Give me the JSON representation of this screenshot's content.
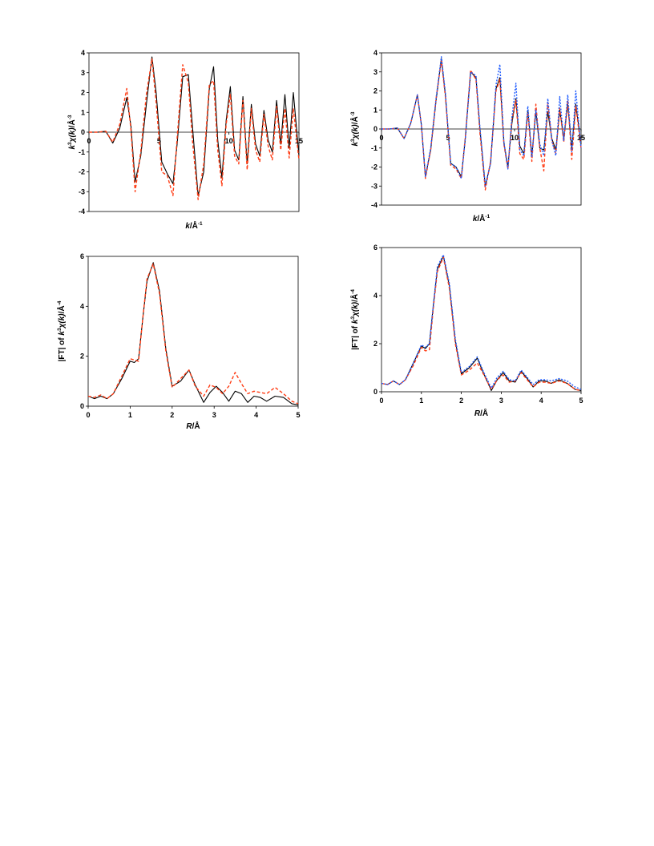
{
  "chart_data": [
    {
      "id": "chi-left",
      "type": "line",
      "xlabel": "k/Å-1",
      "ylabel": "k3χ(k)/Å-3",
      "xlim": [
        0,
        15
      ],
      "ylim": [
        -4,
        4
      ],
      "xticks": [
        "0",
        "5",
        "10",
        "15"
      ],
      "yticks": [
        "-4",
        "-3",
        "-2",
        "-1",
        "0",
        "1",
        "2",
        "3",
        "4"
      ],
      "xtick_position": "on zero line",
      "grid": false,
      "legend": "none",
      "series": [
        {
          "color": "#000000",
          "style": "solid",
          "x": [
            0,
            0.6,
            1.2,
            1.7,
            2.2,
            2.7,
            3.0,
            3.3,
            3.7,
            4.1,
            4.5,
            4.8,
            5.2,
            5.6,
            6.0,
            6.3,
            6.7,
            7.1,
            7.4,
            7.8,
            8.2,
            8.6,
            8.9,
            9.2,
            9.5,
            9.8,
            10.1,
            10.4,
            10.7,
            11.0,
            11.3,
            11.6,
            11.9,
            12.2,
            12.5,
            12.8,
            13.1,
            13.4,
            13.7,
            14.0,
            14.3,
            14.6,
            15.0
          ],
          "y": [
            0,
            0,
            0.05,
            -0.55,
            0.2,
            1.75,
            0.3,
            -2.5,
            -1.2,
            1.4,
            3.8,
            2.0,
            -1.5,
            -2.1,
            -2.6,
            -0.6,
            2.8,
            2.9,
            0.2,
            -3.2,
            -2.0,
            2.2,
            3.3,
            -0.4,
            -2.3,
            0.6,
            2.3,
            -0.9,
            -1.4,
            1.8,
            -1.6,
            1.4,
            -0.6,
            -1.2,
            1.1,
            -0.4,
            -1.0,
            1.6,
            -0.6,
            1.9,
            -0.8,
            2.0,
            -1.2
          ]
        },
        {
          "color": "#ff3c14",
          "style": "dashed",
          "x": [
            0,
            0.6,
            1.2,
            1.7,
            2.2,
            2.7,
            3.0,
            3.3,
            3.7,
            4.1,
            4.5,
            4.8,
            5.2,
            5.6,
            6.0,
            6.3,
            6.7,
            7.1,
            7.4,
            7.8,
            8.2,
            8.6,
            8.9,
            9.2,
            9.5,
            9.8,
            10.1,
            10.4,
            10.7,
            11.0,
            11.3,
            11.6,
            11.9,
            12.2,
            12.5,
            12.8,
            13.1,
            13.4,
            13.7,
            14.0,
            14.3,
            14.6,
            15.0
          ],
          "y": [
            0,
            0,
            0.05,
            -0.5,
            0.4,
            2.2,
            0.1,
            -3.0,
            -1.0,
            1.9,
            3.7,
            1.5,
            -2.0,
            -2.2,
            -3.2,
            -0.3,
            3.4,
            2.5,
            -0.5,
            -3.4,
            -1.6,
            2.4,
            2.6,
            -0.9,
            -2.7,
            0.4,
            1.9,
            -1.2,
            -1.6,
            1.6,
            -1.9,
            1.2,
            -0.9,
            -1.5,
            0.9,
            -0.7,
            -1.4,
            1.3,
            -0.9,
            1.2,
            -1.3,
            1.2,
            -1.4
          ]
        }
      ]
    },
    {
      "id": "chi-right",
      "type": "line",
      "xlabel": "k/Å-1",
      "ylabel": "k3χ(k)/Å-3",
      "xlim": [
        0,
        15
      ],
      "ylim": [
        -4,
        4
      ],
      "xticks": [
        "0",
        "5",
        "10",
        "15"
      ],
      "yticks": [
        "-4",
        "-3",
        "-2",
        "-1",
        "0",
        "1",
        "2",
        "3",
        "4"
      ],
      "xtick_position": "on zero line",
      "grid": false,
      "legend": "none",
      "series": [
        {
          "color": "#000000",
          "style": "solid",
          "x": [
            0,
            0.6,
            1.2,
            1.7,
            2.2,
            2.7,
            3.0,
            3.3,
            3.7,
            4.1,
            4.5,
            4.8,
            5.2,
            5.6,
            6.0,
            6.3,
            6.7,
            7.1,
            7.4,
            7.8,
            8.2,
            8.6,
            8.9,
            9.2,
            9.5,
            9.8,
            10.1,
            10.4,
            10.7,
            11.0,
            11.3,
            11.6,
            11.9,
            12.2,
            12.5,
            12.8,
            13.1,
            13.4,
            13.7,
            14.0,
            14.3,
            14.6,
            15.0
          ],
          "y": [
            0,
            0,
            0.05,
            -0.5,
            0.3,
            1.8,
            0.2,
            -2.5,
            -1.1,
            1.5,
            3.7,
            1.8,
            -1.8,
            -2.0,
            -2.5,
            -0.5,
            3.0,
            2.7,
            0.0,
            -3.0,
            -1.8,
            2.1,
            2.7,
            -0.7,
            -2.0,
            0.3,
            1.6,
            -0.9,
            -1.3,
            1.0,
            -1.4,
            0.9,
            -1.0,
            -1.1,
            0.9,
            -0.5,
            -1.1,
            1.0,
            -0.5,
            1.3,
            -1.0,
            1.3,
            -0.8
          ]
        },
        {
          "color": "#ff3c14",
          "style": "dashed",
          "x": [
            0,
            0.6,
            1.2,
            1.7,
            2.2,
            2.7,
            3.0,
            3.3,
            3.7,
            4.1,
            4.5,
            4.8,
            5.2,
            5.6,
            6.0,
            6.3,
            6.7,
            7.1,
            7.4,
            7.8,
            8.2,
            8.6,
            8.9,
            9.2,
            9.5,
            9.8,
            10.1,
            10.4,
            10.7,
            11.0,
            11.3,
            11.6,
            11.9,
            12.2,
            12.5,
            12.8,
            13.1,
            13.4,
            13.7,
            14.0,
            14.3,
            14.6,
            15.0
          ],
          "y": [
            0,
            0,
            0.05,
            -0.5,
            0.3,
            1.8,
            0.2,
            -2.6,
            -1.1,
            1.6,
            3.6,
            1.7,
            -1.9,
            -2.1,
            -2.6,
            -0.4,
            3.1,
            2.6,
            -0.2,
            -3.2,
            -1.7,
            2.0,
            2.6,
            -0.8,
            -2.1,
            0.5,
            1.5,
            -1.3,
            -1.6,
            0.9,
            -1.7,
            1.3,
            -1.0,
            -2.2,
            1.4,
            -0.6,
            -1.3,
            1.1,
            -0.7,
            1.5,
            -1.6,
            1.2,
            -1.0
          ]
        },
        {
          "color": "#1f5cff",
          "style": "dotted",
          "x": [
            0,
            0.6,
            1.2,
            1.7,
            2.2,
            2.7,
            3.0,
            3.3,
            3.7,
            4.1,
            4.5,
            4.8,
            5.2,
            5.6,
            6.0,
            6.3,
            6.7,
            7.1,
            7.4,
            7.8,
            8.2,
            8.6,
            8.9,
            9.2,
            9.5,
            9.8,
            10.1,
            10.4,
            10.7,
            11.0,
            11.3,
            11.6,
            11.9,
            12.2,
            12.5,
            12.8,
            13.1,
            13.4,
            13.7,
            14.0,
            14.3,
            14.6,
            15.0
          ],
          "y": [
            0,
            0,
            0.05,
            -0.5,
            0.3,
            1.8,
            0.2,
            -2.5,
            -1.0,
            1.6,
            3.8,
            1.9,
            -1.8,
            -2.0,
            -2.6,
            -0.5,
            3.0,
            2.8,
            0.1,
            -3.0,
            -1.8,
            2.3,
            3.4,
            -0.7,
            -2.1,
            0.6,
            2.4,
            -1.1,
            -1.4,
            1.2,
            -1.5,
            1.0,
            -0.8,
            -1.4,
            1.6,
            -0.6,
            -1.4,
            1.7,
            -0.6,
            1.8,
            -1.2,
            2.0,
            -1.0
          ]
        }
      ]
    },
    {
      "id": "ft-left",
      "type": "line",
      "xlabel": "R/Å",
      "ylabel": "|FT| of k3χ(k)/Å-4",
      "xlim": [
        0,
        5
      ],
      "ylim": [
        0,
        6
      ],
      "xticks": [
        "0",
        "1",
        "2",
        "3",
        "4",
        "5"
      ],
      "yticks": [
        "0",
        "2",
        "4",
        "6"
      ],
      "xtick_position": "bottom",
      "grid": false,
      "legend": "none",
      "series": [
        {
          "color": "#000000",
          "style": "solid",
          "x": [
            0,
            0.15,
            0.3,
            0.45,
            0.6,
            0.8,
            1.0,
            1.1,
            1.2,
            1.3,
            1.4,
            1.55,
            1.7,
            1.85,
            2.0,
            2.2,
            2.4,
            2.55,
            2.75,
            2.9,
            3.05,
            3.2,
            3.35,
            3.5,
            3.65,
            3.8,
            3.95,
            4.1,
            4.25,
            4.45,
            4.65,
            4.85,
            5.0
          ],
          "y": [
            0.4,
            0.3,
            0.4,
            0.3,
            0.5,
            1.1,
            1.8,
            1.75,
            1.9,
            3.5,
            5.0,
            5.75,
            4.6,
            2.3,
            0.8,
            1.0,
            1.45,
            0.85,
            0.15,
            0.55,
            0.8,
            0.55,
            0.2,
            0.6,
            0.5,
            0.15,
            0.4,
            0.35,
            0.2,
            0.4,
            0.35,
            0.1,
            0.05
          ]
        },
        {
          "color": "#ff3c14",
          "style": "dashed",
          "x": [
            0,
            0.15,
            0.3,
            0.45,
            0.6,
            0.8,
            1.0,
            1.1,
            1.2,
            1.3,
            1.4,
            1.55,
            1.7,
            1.85,
            2.0,
            2.2,
            2.4,
            2.55,
            2.75,
            2.9,
            3.05,
            3.2,
            3.35,
            3.5,
            3.65,
            3.8,
            3.95,
            4.1,
            4.25,
            4.45,
            4.65,
            4.85,
            5.0
          ],
          "y": [
            0.4,
            0.35,
            0.45,
            0.3,
            0.5,
            1.2,
            1.9,
            1.85,
            1.8,
            3.5,
            5.1,
            5.7,
            4.5,
            2.2,
            0.75,
            1.1,
            1.45,
            0.8,
            0.4,
            0.85,
            0.75,
            0.5,
            0.8,
            1.35,
            0.9,
            0.5,
            0.6,
            0.55,
            0.5,
            0.75,
            0.5,
            0.2,
            0.1
          ]
        }
      ]
    },
    {
      "id": "ft-right",
      "type": "line",
      "xlabel": "R/Å",
      "ylabel": "|FT| of k3χ(k)/Å-4",
      "xlim": [
        0,
        5
      ],
      "ylim": [
        0,
        6
      ],
      "xticks": [
        "0",
        "1",
        "2",
        "3",
        "4",
        "5"
      ],
      "yticks": [
        "0",
        "2",
        "4",
        "6"
      ],
      "xtick_position": "bottom",
      "grid": false,
      "legend": "none",
      "series": [
        {
          "color": "#000000",
          "style": "solid",
          "x": [
            0,
            0.15,
            0.3,
            0.45,
            0.6,
            0.8,
            1.0,
            1.1,
            1.2,
            1.3,
            1.4,
            1.55,
            1.7,
            1.85,
            2.0,
            2.2,
            2.4,
            2.55,
            2.75,
            2.9,
            3.05,
            3.2,
            3.35,
            3.5,
            3.65,
            3.8,
            3.95,
            4.1,
            4.25,
            4.45,
            4.65,
            4.85,
            5.0
          ],
          "y": [
            0.35,
            0.3,
            0.45,
            0.3,
            0.5,
            1.2,
            1.9,
            1.8,
            2.0,
            3.6,
            5.1,
            5.65,
            4.4,
            2.1,
            0.75,
            1.0,
            1.4,
            0.8,
            0.05,
            0.5,
            0.8,
            0.45,
            0.4,
            0.85,
            0.55,
            0.2,
            0.45,
            0.45,
            0.35,
            0.5,
            0.35,
            0.1,
            0.05
          ]
        },
        {
          "color": "#ff3c14",
          "style": "dashed",
          "x": [
            0,
            0.15,
            0.3,
            0.45,
            0.6,
            0.8,
            1.0,
            1.1,
            1.2,
            1.3,
            1.4,
            1.55,
            1.7,
            1.85,
            2.0,
            2.2,
            2.4,
            2.55,
            2.75,
            2.9,
            3.05,
            3.2,
            3.35,
            3.5,
            3.65,
            3.8,
            3.95,
            4.1,
            4.25,
            4.45,
            4.65,
            4.85,
            5.0
          ],
          "y": [
            0.35,
            0.3,
            0.45,
            0.3,
            0.5,
            1.1,
            1.85,
            1.7,
            1.75,
            3.5,
            5.0,
            5.6,
            4.3,
            2.0,
            0.7,
            0.9,
            1.2,
            0.75,
            0.1,
            0.5,
            0.7,
            0.4,
            0.45,
            0.8,
            0.5,
            0.2,
            0.4,
            0.4,
            0.35,
            0.45,
            0.35,
            0.1,
            0.05
          ]
        },
        {
          "color": "#1f5cff",
          "style": "dotted",
          "x": [
            0,
            0.15,
            0.3,
            0.45,
            0.6,
            0.8,
            1.0,
            1.1,
            1.2,
            1.3,
            1.4,
            1.55,
            1.7,
            1.85,
            2.0,
            2.2,
            2.4,
            2.55,
            2.75,
            2.9,
            3.05,
            3.2,
            3.35,
            3.5,
            3.65,
            3.8,
            3.95,
            4.1,
            4.25,
            4.45,
            4.65,
            4.85,
            5.0
          ],
          "y": [
            0.35,
            0.3,
            0.45,
            0.3,
            0.5,
            1.2,
            1.95,
            1.85,
            2.0,
            3.6,
            5.2,
            5.7,
            4.5,
            2.2,
            0.8,
            1.05,
            1.45,
            0.85,
            0.15,
            0.6,
            0.85,
            0.5,
            0.45,
            0.9,
            0.6,
            0.3,
            0.5,
            0.5,
            0.45,
            0.55,
            0.45,
            0.2,
            0.1
          ]
        }
      ]
    }
  ]
}
